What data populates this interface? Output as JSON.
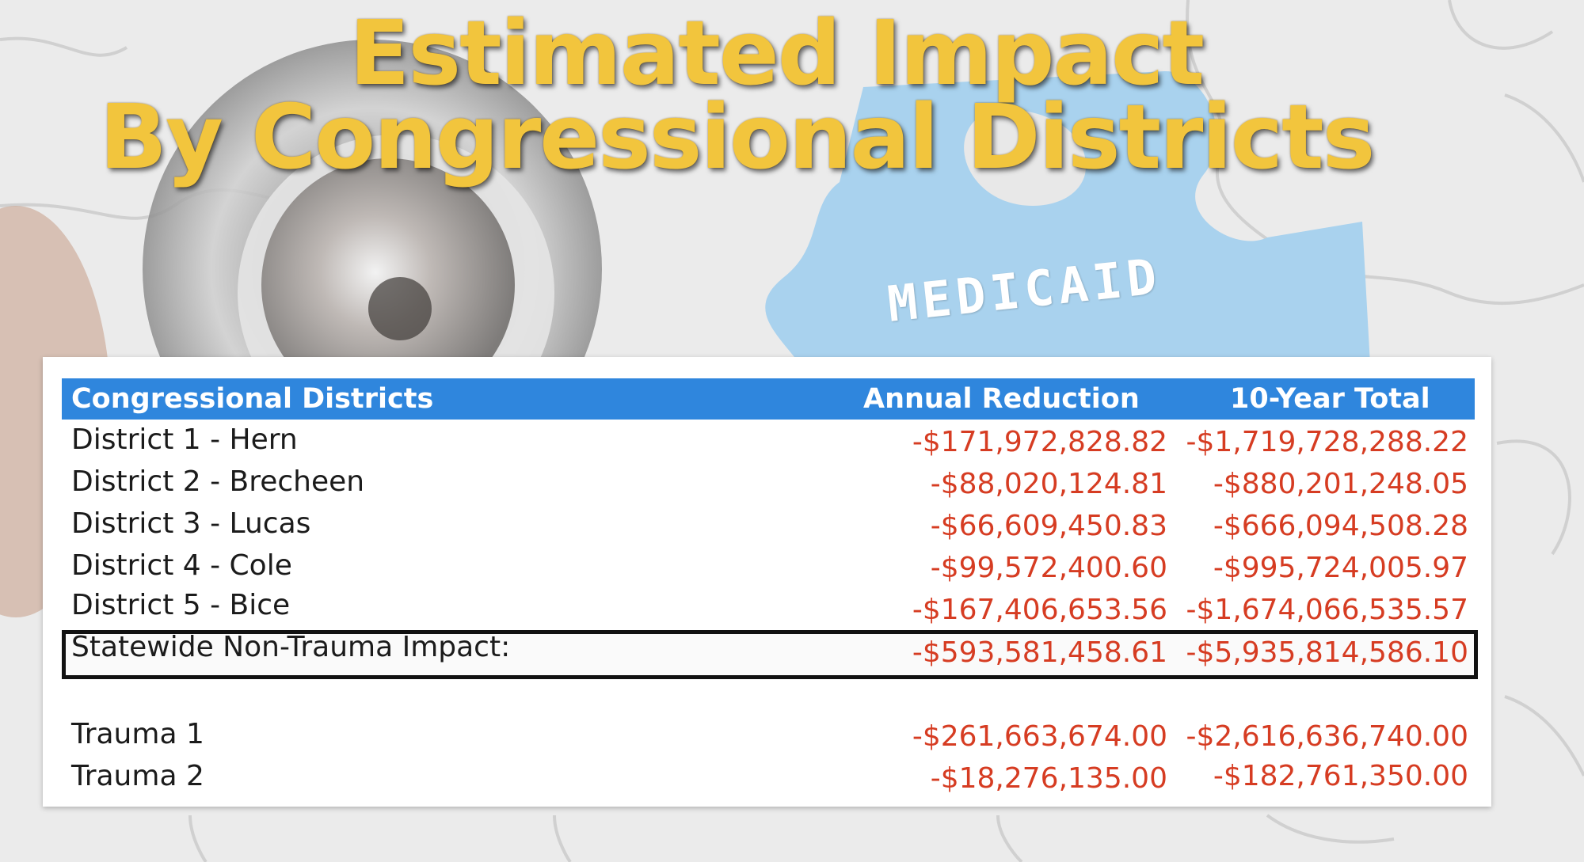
{
  "title": {
    "line1": "Estimated Impact",
    "line2": "By Congressional Districts"
  },
  "badge_text": "MEDICAID",
  "table": {
    "headers": [
      "Congressional Districts",
      "Annual Reduction",
      "10-Year Total"
    ],
    "rows": [
      {
        "name": "District 1 - Hern",
        "annual": "-$171,972,828.82",
        "ten_year": "-$1,719,728,288.22"
      },
      {
        "name": "District 2 - Brecheen",
        "annual": "-$88,020,124.81",
        "ten_year": "-$880,201,248.05"
      },
      {
        "name": "District 3 - Lucas",
        "annual": "-$66,609,450.83",
        "ten_year": "-$666,094,508.28"
      },
      {
        "name": "District 4 - Cole",
        "annual": "-$99,572,400.60",
        "ten_year": "-$995,724,005.97"
      },
      {
        "name": "District 5 - Bice",
        "annual": "-$167,406,653.56",
        "ten_year": "-$1,674,066,535.57"
      }
    ],
    "statewide": {
      "name": "Statewide Non-Trauma Impact:",
      "annual": "-$593,581,458.61",
      "ten_year": "-$5,935,814,586.10"
    },
    "trauma": [
      {
        "name": "Trauma 1",
        "annual": "-$261,663,674.00",
        "ten_year": "-$2,616,636,740.00"
      },
      {
        "name": "Trauma 2",
        "annual": "-$18,276,135.00",
        "ten_year": "-$182,761,350.00"
      }
    ]
  },
  "colors": {
    "title": "#f2c53d",
    "header_bg": "#2f86dd",
    "value_red": "#d63c22",
    "puzzle_blue": "#a9d2ee"
  }
}
